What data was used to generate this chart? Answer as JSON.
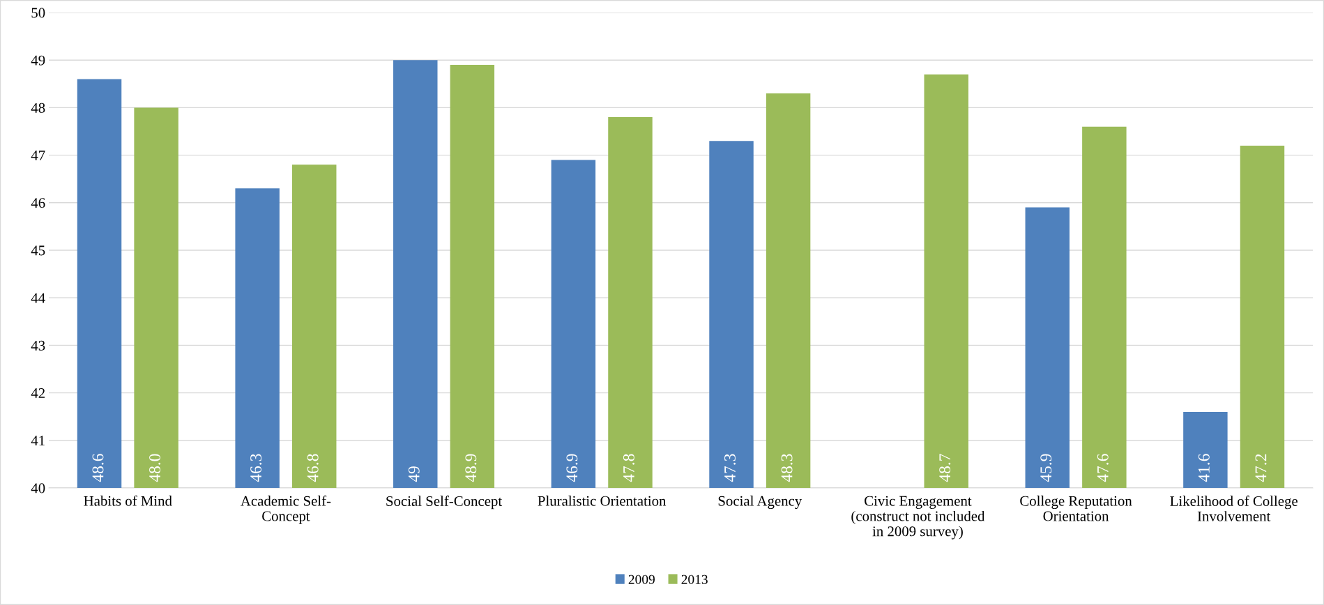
{
  "chart_data": {
    "type": "bar",
    "categories": [
      "Habits of Mind",
      "Academic Self-\nConcept",
      "Social Self-Concept",
      "Pluralistic Orientation",
      "Social Agency",
      "Civic Engagement\n(construct not included\nin 2009 survey)",
      "College Reputation\nOrientation",
      "Likelihood of College\nInvolvement"
    ],
    "series": [
      {
        "name": "2009",
        "color": "#4f81bd",
        "values": [
          48.6,
          46.3,
          49,
          46.9,
          47.3,
          null,
          45.9,
          41.6
        ],
        "value_labels": [
          "48.6",
          "46.3",
          "49",
          "46.9",
          "47.3",
          null,
          "45.9",
          "41.6"
        ]
      },
      {
        "name": "2013",
        "color": "#9bbb59",
        "values": [
          48.0,
          46.8,
          48.9,
          47.8,
          48.3,
          48.7,
          47.6,
          47.2
        ],
        "value_labels": [
          "48.0",
          "46.8",
          "48.9",
          "47.8",
          "48.3",
          "48.7",
          "47.6",
          "47.2"
        ]
      }
    ],
    "ylim": [
      40,
      50
    ],
    "yticks": [
      40,
      41,
      42,
      43,
      44,
      45,
      46,
      47,
      48,
      49,
      50
    ],
    "grid": "y",
    "legend": "bottom"
  }
}
